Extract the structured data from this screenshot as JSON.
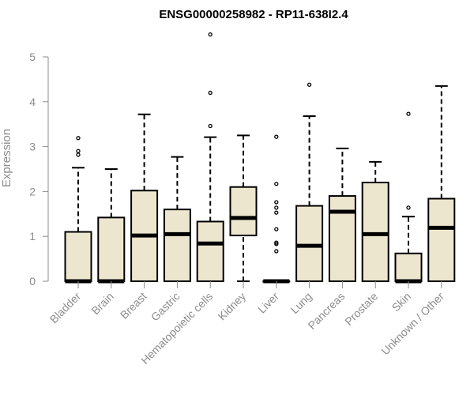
{
  "chart_data": {
    "type": "boxplot",
    "title": "ENSG00000258982 - RP11-638I2.4",
    "xlabel": "",
    "ylabel": "Expression",
    "ylim": [
      0,
      5
    ],
    "yticks": [
      "0",
      "1",
      "2",
      "3",
      "4",
      "5"
    ],
    "grid": false,
    "box_fill": "#ede6cf",
    "box_stroke": "#000000",
    "axis_color": "#8c8c8c",
    "categories": [
      "Bladder",
      "Brain",
      "Breast",
      "Gastric",
      "Hematopoietic cells",
      "Kidney",
      "Liver",
      "Lung",
      "Pancreas",
      "Prostate",
      "Skin",
      "Unknown / Other"
    ],
    "boxes": [
      {
        "min": 0,
        "q1": 0,
        "median": 0,
        "q3": 1.1,
        "max": 2.53,
        "outliers": [
          2.82,
          2.9,
          3.19
        ]
      },
      {
        "min": 0,
        "q1": 0,
        "median": 0,
        "q3": 1.42,
        "max": 2.5,
        "outliers": []
      },
      {
        "min": 0,
        "q1": 0,
        "median": 1.02,
        "q3": 2.02,
        "max": 3.72,
        "outliers": []
      },
      {
        "min": 0,
        "q1": 0,
        "median": 1.05,
        "q3": 1.6,
        "max": 2.77,
        "outliers": []
      },
      {
        "min": 0,
        "q1": 0,
        "median": 0.84,
        "q3": 1.33,
        "max": 3.21,
        "outliers": [
          3.46,
          4.2,
          5.5
        ]
      },
      {
        "min": 0,
        "q1": 1.02,
        "median": 1.41,
        "q3": 2.1,
        "max": 3.25,
        "outliers": []
      },
      {
        "min": 0,
        "q1": 0,
        "median": 0,
        "q3": 0,
        "max": 0,
        "outliers": [
          0.67,
          0.83,
          0.86,
          1.16,
          1.53,
          1.64,
          1.76,
          2.17,
          3.22
        ]
      },
      {
        "min": 0,
        "q1": 0,
        "median": 0.79,
        "q3": 1.68,
        "max": 3.68,
        "outliers": [
          4.38
        ]
      },
      {
        "min": 0,
        "q1": 0,
        "median": 1.55,
        "q3": 1.9,
        "max": 2.96,
        "outliers": []
      },
      {
        "min": 0,
        "q1": 0,
        "median": 1.05,
        "q3": 2.2,
        "max": 2.66,
        "outliers": []
      },
      {
        "min": 0,
        "q1": 0,
        "median": 0,
        "q3": 0.62,
        "max": 1.44,
        "outliers": [
          1.64,
          3.73
        ]
      },
      {
        "min": 0,
        "q1": 0,
        "median": 1.19,
        "q3": 1.84,
        "max": 4.35,
        "outliers": []
      }
    ]
  }
}
